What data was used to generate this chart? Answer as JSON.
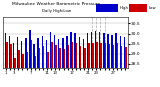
{
  "title": "Milwaukee Weather Barometric Pressure",
  "subtitle": "Daily High/Low",
  "ylim": [
    28.3,
    30.8
  ],
  "background_color": "#ffffff",
  "bar_width": 0.35,
  "highs": [
    30.05,
    29.9,
    29.55,
    29.85,
    29.65,
    29.8,
    30.2,
    29.5,
    29.8,
    29.9,
    29.7,
    30.1,
    29.95,
    29.75,
    29.8,
    29.9,
    30.1,
    30.05,
    29.85,
    29.75,
    30.05,
    30.1,
    30.15,
    30.1,
    30.05,
    30.0,
    29.95,
    30.05,
    29.9,
    29.85
  ],
  "lows": [
    29.6,
    29.5,
    28.8,
    29.2,
    29.0,
    29.1,
    29.7,
    28.9,
    29.3,
    29.4,
    29.1,
    29.6,
    29.45,
    29.3,
    29.25,
    29.45,
    29.6,
    29.55,
    29.4,
    29.3,
    29.55,
    29.55,
    29.6,
    29.55,
    29.55,
    29.5,
    29.45,
    29.55,
    29.4,
    29.35
  ],
  "x_labels": [
    "1",
    "",
    "3",
    "",
    "",
    "",
    "7",
    "",
    "",
    "",
    "11",
    "",
    "13",
    "",
    "",
    "",
    "17",
    "",
    "",
    "",
    "21",
    "",
    "23",
    "",
    "",
    "",
    "27",
    "",
    "",
    ""
  ],
  "high_color": "#0000cc",
  "low_color": "#cc0000",
  "grid_color": "#aaaaaa",
  "dashed_indices": [
    21,
    22,
    23,
    24
  ],
  "yticks": [
    28.5,
    29.0,
    29.5,
    30.0,
    30.5
  ]
}
